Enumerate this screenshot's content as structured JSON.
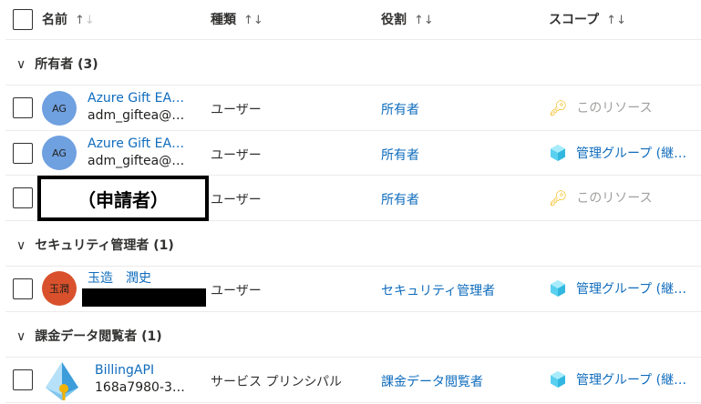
{
  "columns": [
    {
      "label": "名前",
      "sort": "↑↓"
    },
    {
      "label": "種類",
      "sort": "↑↓"
    },
    {
      "label": "役割",
      "sort": "↑↓"
    },
    {
      "label": "スコープ",
      "sort": "↑↓"
    }
  ],
  "groups": [
    {
      "label": "所有者 (3)",
      "rows": [
        {
          "initials": "AG",
          "avatar_color": "#6fa0e0",
          "name": "Azure Gift EA…",
          "sub": "adm_giftea@…",
          "type": "ユーザー",
          "role": "所有者",
          "scope": "このリソース",
          "scope_icon": "key-icon"
        },
        {
          "initials": "AG",
          "avatar_color": "#6fa0e0",
          "name": "Azure Gift EA…",
          "sub": "adm_giftea@…",
          "type": "ユーザー",
          "role": "所有者",
          "scope": "管理グループ (継…",
          "scope_icon": "management-group-icon"
        },
        {
          "redacted_label": "（申請者）",
          "type": "ユーザー",
          "role": "所有者",
          "scope": "このリソース",
          "scope_icon": "key-icon"
        }
      ]
    },
    {
      "label": "セキュリティ管理者 (1)",
      "rows": [
        {
          "initials": "玉潤",
          "avatar_color": "#d9512c",
          "name": "玉造　潤史",
          "type": "ユーザー",
          "role": "セキュリティ管理者",
          "scope": "管理グループ (継…",
          "scope_icon": "management-group-icon"
        }
      ]
    },
    {
      "label": "課金データ閲覧者 (1)",
      "rows": [
        {
          "name": "BillingAPI",
          "sub": "168a7980-3…",
          "type": "サービス プリンシパル",
          "role": "課金データ閲覧者",
          "scope": "管理グループ (継…",
          "scope_icon": "management-group-icon"
        }
      ]
    }
  ]
}
